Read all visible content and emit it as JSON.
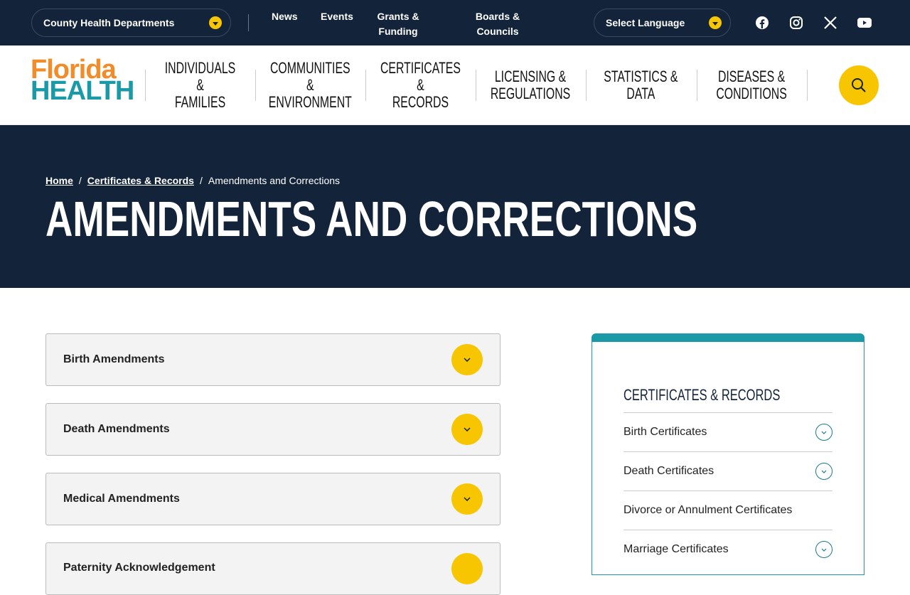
{
  "topbar": {
    "county_label": "County Health Departments",
    "links": [
      "News",
      "Events",
      "Grants &\nFunding",
      "Boards &\nCouncils"
    ],
    "language_label": "Select Language",
    "social": [
      "facebook-icon",
      "instagram-icon",
      "x-icon",
      "youtube-icon"
    ]
  },
  "logo": {
    "line1": "Florida",
    "line2": "HEALTH"
  },
  "nav": [
    "INDIVIDUALS &\nFAMILIES",
    "COMMUNITIES\n&\nENVIRONMENT",
    "CERTIFICATES\n&\nRECORDS",
    "LICENSING &\nREGULATIONS",
    "STATISTICS &\nDATA",
    "DISEASES &\nCONDITIONS"
  ],
  "breadcrumb": {
    "home": "Home",
    "parent": "Certificates & Records",
    "sep": "/",
    "current": "Amendments and Corrections"
  },
  "page_title": "AMENDMENTS AND CORRECTIONS",
  "accordions": [
    "Birth Amendments",
    "Death Amendments",
    "Medical Amendments",
    "Paternity Acknowledgement"
  ],
  "sidebar": {
    "title": "CERTIFICATES & RECORDS",
    "items": [
      {
        "label": "Birth Certificates",
        "expandable": true
      },
      {
        "label": "Death Certificates",
        "expandable": true
      },
      {
        "label": "Divorce or Annulment Certificates",
        "expandable": false
      },
      {
        "label": "Marriage Certificates",
        "expandable": true
      }
    ]
  },
  "colors": {
    "navy": "#13233a",
    "yellow": "#f7c600",
    "teal": "#1a9aa6",
    "orange": "#f28c28"
  }
}
